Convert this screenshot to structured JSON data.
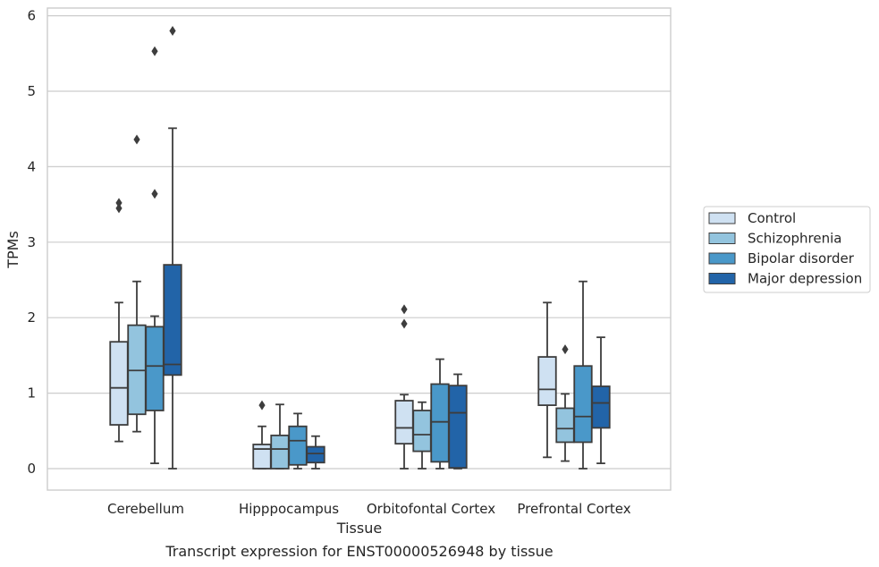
{
  "chart_data": {
    "type": "box",
    "title": "",
    "caption": "Transcript expression for ENST00000526948 by tissue",
    "xlabel": "Tissue",
    "ylabel": "TPMs",
    "ylim": [
      -0.28,
      6.1
    ],
    "yticks": [
      0,
      1,
      2,
      3,
      4,
      5,
      6
    ],
    "grid": "horizontal",
    "legend_position": "right",
    "categories": [
      "Cerebellum",
      "Hipppocampus",
      "Orbitofontal Cortex",
      "Prefrontal Cortex"
    ],
    "series": [
      {
        "name": "Control",
        "color": "#cfe1f2",
        "boxes": [
          {
            "whisker_low": 0.36,
            "q1": 0.58,
            "median": 1.07,
            "q3": 1.68,
            "whisker_high": 2.2,
            "outliers": [
              3.45,
              3.52
            ]
          },
          {
            "whisker_low": 0.0,
            "q1": 0.0,
            "median": 0.26,
            "q3": 0.32,
            "whisker_high": 0.56,
            "outliers": [
              0.84
            ]
          },
          {
            "whisker_low": 0.0,
            "q1": 0.33,
            "median": 0.54,
            "q3": 0.9,
            "whisker_high": 0.98,
            "outliers": [
              1.92,
              2.11
            ]
          },
          {
            "whisker_low": 0.15,
            "q1": 0.84,
            "median": 1.05,
            "q3": 1.48,
            "whisker_high": 2.2,
            "outliers": []
          }
        ]
      },
      {
        "name": "Schizophrenia",
        "color": "#93c4de",
        "boxes": [
          {
            "whisker_low": 0.49,
            "q1": 0.72,
            "median": 1.3,
            "q3": 1.9,
            "whisker_high": 2.48,
            "outliers": [
              4.36
            ]
          },
          {
            "whisker_low": 0.0,
            "q1": 0.0,
            "median": 0.26,
            "q3": 0.44,
            "whisker_high": 0.85,
            "outliers": []
          },
          {
            "whisker_low": 0.0,
            "q1": 0.23,
            "median": 0.45,
            "q3": 0.77,
            "whisker_high": 0.88,
            "outliers": []
          },
          {
            "whisker_low": 0.1,
            "q1": 0.35,
            "median": 0.53,
            "q3": 0.8,
            "whisker_high": 0.99,
            "outliers": [
              1.58
            ]
          }
        ]
      },
      {
        "name": "Bipolar disorder",
        "color": "#4a98c9",
        "boxes": [
          {
            "whisker_low": 0.07,
            "q1": 0.77,
            "median": 1.36,
            "q3": 1.88,
            "whisker_high": 2.02,
            "outliers": [
              3.64,
              5.53
            ]
          },
          {
            "whisker_low": 0.0,
            "q1": 0.05,
            "median": 0.37,
            "q3": 0.56,
            "whisker_high": 0.73,
            "outliers": []
          },
          {
            "whisker_low": 0.0,
            "q1": 0.09,
            "median": 0.62,
            "q3": 1.12,
            "whisker_high": 1.45,
            "outliers": []
          },
          {
            "whisker_low": 0.0,
            "q1": 0.35,
            "median": 0.69,
            "q3": 1.36,
            "whisker_high": 2.48,
            "outliers": []
          }
        ]
      },
      {
        "name": "Major depression",
        "color": "#2264a8",
        "boxes": [
          {
            "whisker_low": 0.0,
            "q1": 1.24,
            "median": 1.38,
            "q3": 2.7,
            "whisker_high": 4.51,
            "outliers": [
              5.8
            ]
          },
          {
            "whisker_low": 0.0,
            "q1": 0.08,
            "median": 0.2,
            "q3": 0.29,
            "whisker_high": 0.43,
            "outliers": []
          },
          {
            "whisker_low": 0.0,
            "q1": 0.01,
            "median": 0.74,
            "q3": 1.1,
            "whisker_high": 1.25,
            "outliers": []
          },
          {
            "whisker_low": 0.07,
            "q1": 0.54,
            "median": 0.87,
            "q3": 1.09,
            "whisker_high": 1.74,
            "outliers": []
          }
        ]
      }
    ]
  }
}
